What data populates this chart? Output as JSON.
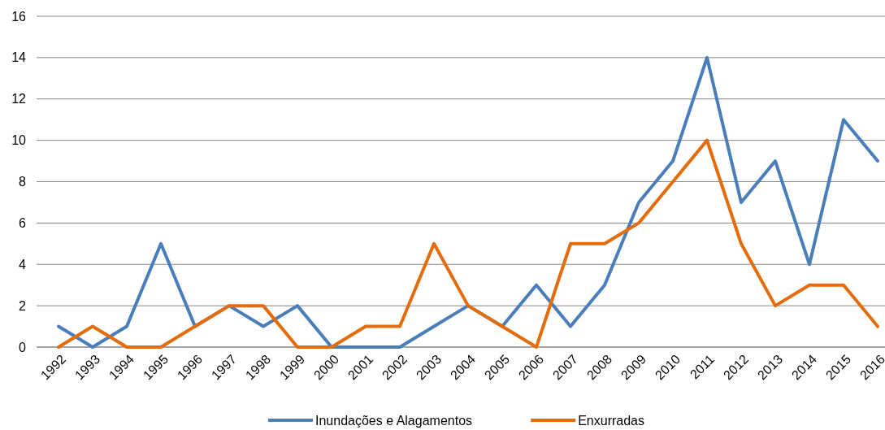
{
  "chart_data": {
    "type": "line",
    "categories": [
      "1992",
      "1993",
      "1994",
      "1995",
      "1996",
      "1997",
      "1998",
      "1999",
      "2000",
      "2001",
      "2002",
      "2003",
      "2004",
      "2005",
      "2006",
      "2007",
      "2008",
      "2009",
      "2010",
      "2011",
      "2012",
      "2013",
      "2014",
      "2015",
      "2016"
    ],
    "series": [
      {
        "name": "Inundações e Alagamentos",
        "color": "#4a7ebb",
        "values": [
          1,
          0,
          1,
          5,
          1,
          2,
          1,
          2,
          0,
          0,
          0,
          1,
          2,
          1,
          3,
          1,
          3,
          7,
          9,
          14,
          7,
          9,
          4,
          11,
          9
        ]
      },
      {
        "name": "Enxurradas",
        "color": "#e46c0a",
        "values": [
          0,
          1,
          0,
          0,
          1,
          2,
          2,
          0,
          0,
          1,
          1,
          5,
          2,
          1,
          0,
          5,
          5,
          6,
          8,
          10,
          5,
          2,
          3,
          3,
          1
        ]
      }
    ],
    "ylim": [
      0,
      16
    ],
    "yticks": [
      0,
      2,
      4,
      6,
      8,
      10,
      12,
      14,
      16
    ],
    "grid": "y",
    "legend": "bottom",
    "marker": "none",
    "line_style": "solid"
  }
}
